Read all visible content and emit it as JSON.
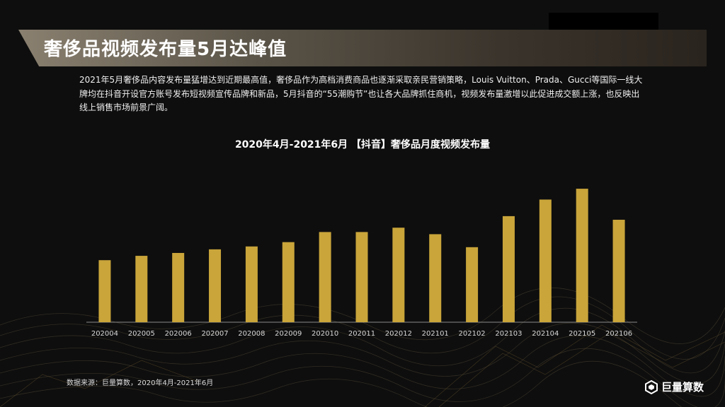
{
  "header": {
    "title": "奢侈品视频发布量5月达峰值"
  },
  "description": "2021年5月奢侈品内容发布量猛增达到近期最高值，奢侈品作为高档消费商品也逐渐采取亲民营销策略，Louis Vuitton、Prada、Gucci等国际一线大牌均在抖音开设官方账号发布短视频宣传品牌和新品，5月抖音的“55潮购节”也让各大品牌抓住商机，视频发布量激增以此促进成交额上涨，也反映出线上销售市场前景广阔。",
  "chart_data": {
    "type": "bar",
    "title": "2020年4月-2021年6月 【抖音】奢侈品月度视频发布量",
    "categories": [
      "202004",
      "202005",
      "202006",
      "202007",
      "202008",
      "202009",
      "202010",
      "202011",
      "202012",
      "202101",
      "202102",
      "202103",
      "202104",
      "202105",
      "202106"
    ],
    "values": [
      86,
      92,
      96,
      101,
      105,
      111,
      125,
      125,
      131,
      122,
      104,
      147,
      170,
      185,
      142
    ],
    "ylim": [
      0,
      190
    ],
    "bar_color": "#c9a53a",
    "axis_color": "#8a8a8a",
    "grid": false
  },
  "footer": {
    "source": "数据来源：巨量算数，2020年4月-2021年6月",
    "logo_text": "巨量算数",
    "logo_icon": "hexagon-logo-icon"
  }
}
